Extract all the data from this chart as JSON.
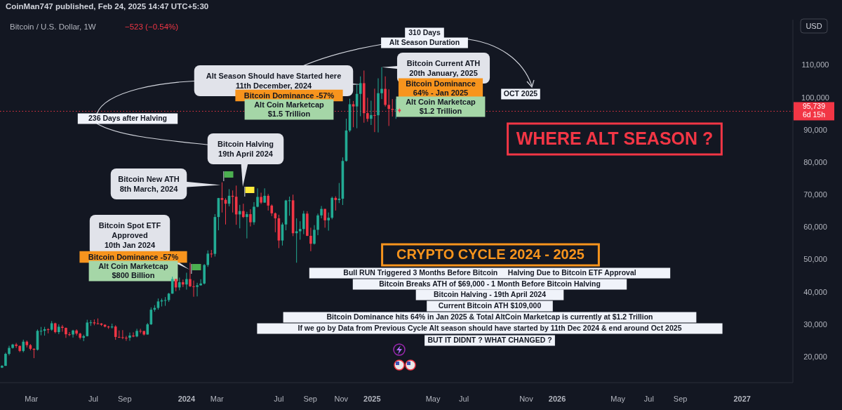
{
  "chart_data": {
    "type": "candlestick",
    "title": "Bitcoin / U.S. Dollar, 1W",
    "subtitle": "−523 (−0.54%)",
    "x": [
      "2023-01-02",
      "2023-01-09",
      "2023-01-16",
      "2023-01-23",
      "2023-01-30",
      "2023-02-06",
      "2023-02-13",
      "2023-02-20",
      "2023-02-27",
      "2023-03-06",
      "2023-03-13",
      "2023-03-20",
      "2023-03-27",
      "2023-04-03",
      "2023-04-10",
      "2023-04-17",
      "2023-04-24",
      "2023-05-01",
      "2023-05-08",
      "2023-05-15",
      "2023-05-22",
      "2023-05-29",
      "2023-06-05",
      "2023-06-12",
      "2023-06-19",
      "2023-06-26",
      "2023-07-03",
      "2023-07-10",
      "2023-07-17",
      "2023-07-24",
      "2023-07-31",
      "2023-08-07",
      "2023-08-14",
      "2023-08-21",
      "2023-08-28",
      "2023-09-04",
      "2023-09-11",
      "2023-09-18",
      "2023-09-25",
      "2023-10-02",
      "2023-10-09",
      "2023-10-16",
      "2023-10-23",
      "2023-10-30",
      "2023-11-06",
      "2023-11-13",
      "2023-11-20",
      "2023-11-27",
      "2023-12-04",
      "2023-12-11",
      "2023-12-18",
      "2023-12-25",
      "2024-01-01",
      "2024-01-08",
      "2024-01-15",
      "2024-01-22",
      "2024-01-29",
      "2024-02-05",
      "2024-02-12",
      "2024-02-19",
      "2024-02-26",
      "2024-03-04",
      "2024-03-11",
      "2024-03-18",
      "2024-03-25",
      "2024-04-01",
      "2024-04-08",
      "2024-04-15",
      "2024-04-22",
      "2024-04-29",
      "2024-05-06",
      "2024-05-13",
      "2024-05-20",
      "2024-05-27",
      "2024-06-03",
      "2024-06-10",
      "2024-06-17",
      "2024-06-24",
      "2024-07-01",
      "2024-07-08",
      "2024-07-15",
      "2024-07-22",
      "2024-07-29",
      "2024-08-05",
      "2024-08-12",
      "2024-08-19",
      "2024-08-26",
      "2024-09-02",
      "2024-09-09",
      "2024-09-16",
      "2024-09-23",
      "2024-09-30",
      "2024-10-07",
      "2024-10-14",
      "2024-10-21",
      "2024-10-28",
      "2024-11-04",
      "2024-11-11",
      "2024-11-18",
      "2024-11-25",
      "2024-12-02",
      "2024-12-09",
      "2024-12-16",
      "2024-12-23",
      "2024-12-30",
      "2025-01-06",
      "2025-01-13",
      "2025-01-20",
      "2025-01-27",
      "2025-02-03",
      "2025-02-10",
      "2025-02-17",
      "2025-02-24"
    ],
    "ohlc": [
      [
        16620,
        17400,
        16500,
        17180
      ],
      [
        17180,
        21250,
        17150,
        20870
      ],
      [
        20870,
        23370,
        20400,
        22710
      ],
      [
        22710,
        23960,
        22500,
        23750
      ],
      [
        23750,
        24250,
        22700,
        23330
      ],
      [
        23330,
        23450,
        21400,
        21780
      ],
      [
        21780,
        25250,
        21350,
        24630
      ],
      [
        24630,
        25000,
        22850,
        23560
      ],
      [
        23560,
        23900,
        21950,
        22430
      ],
      [
        22430,
        22600,
        19550,
        22140
      ],
      [
        22140,
        28400,
        21900,
        27980
      ],
      [
        27980,
        29180,
        26600,
        27990
      ],
      [
        27990,
        29200,
        26500,
        28470
      ],
      [
        28470,
        28800,
        27200,
        28330
      ],
      [
        28330,
        31000,
        28000,
        30310
      ],
      [
        30310,
        30490,
        27200,
        27590
      ],
      [
        27590,
        30000,
        26950,
        29240
      ],
      [
        29240,
        29800,
        27700,
        28890
      ],
      [
        28890,
        29000,
        25800,
        26920
      ],
      [
        26920,
        27600,
        26350,
        26850
      ],
      [
        26850,
        28300,
        25900,
        28080
      ],
      [
        28080,
        28450,
        26550,
        27120
      ],
      [
        27120,
        27400,
        25350,
        25850
      ],
      [
        25850,
        26800,
        24800,
        26340
      ],
      [
        26340,
        31400,
        26250,
        30540
      ],
      [
        30540,
        31300,
        29500,
        30590
      ],
      [
        30590,
        31500,
        29700,
        30290
      ],
      [
        30290,
        31800,
        29950,
        30240
      ],
      [
        30240,
        30350,
        29500,
        29850
      ],
      [
        29850,
        30000,
        29050,
        29290
      ],
      [
        29290,
        29550,
        28600,
        29050
      ],
      [
        29050,
        30200,
        28700,
        29300
      ],
      [
        29300,
        29700,
        25200,
        26100
      ],
      [
        26100,
        28100,
        25800,
        26010
      ],
      [
        26010,
        28200,
        25400,
        25850
      ],
      [
        25850,
        26400,
        24900,
        25840
      ],
      [
        25840,
        27450,
        24900,
        26530
      ],
      [
        26530,
        27500,
        26000,
        26250
      ],
      [
        26250,
        28600,
        26000,
        27970
      ],
      [
        27970,
        28600,
        27200,
        27920
      ],
      [
        27920,
        28000,
        26550,
        26850
      ],
      [
        26850,
        30400,
        26800,
        29990
      ],
      [
        29990,
        35200,
        29800,
        34500
      ],
      [
        34500,
        35900,
        33900,
        35050
      ],
      [
        35050,
        37950,
        34500,
        37050
      ],
      [
        37050,
        37950,
        35500,
        37390
      ],
      [
        37390,
        38400,
        35700,
        37470
      ],
      [
        37470,
        39700,
        36900,
        39460
      ],
      [
        39460,
        44700,
        39400,
        43990
      ],
      [
        43990,
        44000,
        40200,
        41370
      ],
      [
        41370,
        44400,
        40500,
        42990
      ],
      [
        42990,
        43800,
        41500,
        42280
      ],
      [
        42280,
        45900,
        40700,
        43950
      ],
      [
        43950,
        49000,
        41500,
        41730
      ],
      [
        41730,
        43500,
        38500,
        41550
      ],
      [
        41550,
        42800,
        38600,
        42030
      ],
      [
        42030,
        43900,
        41900,
        42580
      ],
      [
        42580,
        48600,
        42300,
        48300
      ],
      [
        48300,
        52800,
        47700,
        51800
      ],
      [
        51800,
        52950,
        50600,
        51730
      ],
      [
        51730,
        64000,
        50900,
        63100
      ],
      [
        63100,
        69000,
        59000,
        68950
      ],
      [
        68950,
        73800,
        64500,
        68390
      ],
      [
        68390,
        68900,
        60800,
        67210
      ],
      [
        67210,
        71700,
        66400,
        69650
      ],
      [
        69650,
        71300,
        64500,
        69360
      ],
      [
        69360,
        72800,
        60700,
        63900
      ],
      [
        63900,
        66850,
        59600,
        64940
      ],
      [
        64940,
        67200,
        62800,
        63100
      ],
      [
        63100,
        64700,
        56500,
        63980
      ],
      [
        63980,
        65500,
        60200,
        61480
      ],
      [
        61480,
        67700,
        60700,
        66270
      ],
      [
        66270,
        71950,
        66100,
        69300
      ],
      [
        69300,
        70600,
        67100,
        67550
      ],
      [
        67550,
        71950,
        67500,
        69650
      ],
      [
        69650,
        70200,
        65100,
        66630
      ],
      [
        66630,
        66980,
        63400,
        64250
      ],
      [
        64250,
        64500,
        58400,
        62700
      ],
      [
        62700,
        63800,
        53500,
        55850
      ],
      [
        55850,
        61400,
        54300,
        60800
      ],
      [
        60800,
        68400,
        59000,
        68200
      ],
      [
        68200,
        69400,
        63500,
        68250
      ],
      [
        68250,
        70000,
        57200,
        58100
      ],
      [
        58100,
        62700,
        49000,
        58700
      ],
      [
        58700,
        61800,
        56100,
        59400
      ],
      [
        59400,
        65000,
        57800,
        64150
      ],
      [
        64150,
        64900,
        57200,
        57300
      ],
      [
        57300,
        59800,
        52550,
        54850
      ],
      [
        54850,
        60600,
        54600,
        59150
      ],
      [
        59150,
        64150,
        57500,
        63600
      ],
      [
        63600,
        66500,
        62700,
        65600
      ],
      [
        65600,
        65600,
        59800,
        62080
      ],
      [
        62080,
        64500,
        58900,
        62870
      ],
      [
        62870,
        69400,
        62400,
        69000
      ],
      [
        69000,
        69500,
        65100,
        68350
      ],
      [
        68350,
        73600,
        67400,
        68750
      ],
      [
        68750,
        81500,
        66800,
        80400
      ],
      [
        80400,
        93450,
        80200,
        89800
      ],
      [
        89800,
        99600,
        89300,
        97900
      ],
      [
        97900,
        98900,
        90800,
        97220
      ],
      [
        97220,
        104000,
        90500,
        101100
      ],
      [
        101100,
        106500,
        94200,
        104400
      ],
      [
        104400,
        108300,
        92200,
        95150
      ],
      [
        95150,
        99900,
        92500,
        93400
      ],
      [
        93400,
        99000,
        91500,
        94560
      ],
      [
        94560,
        102700,
        89300,
        94500
      ],
      [
        94500,
        105900,
        89200,
        101300
      ],
      [
        101300,
        109350,
        99500,
        102650
      ],
      [
        102650,
        106500,
        97200,
        97700
      ],
      [
        97700,
        102500,
        91200,
        96470
      ],
      [
        96470,
        99500,
        94100,
        96150
      ],
      [
        96150,
        99500,
        93400,
        96260
      ],
      [
        96260,
        96600,
        95300,
        95739
      ]
    ],
    "xlim": [
      "2022-12-29",
      "2027-04-11"
    ],
    "xticks": [
      {
        "value": "2023-03-01",
        "label": "Mar"
      },
      {
        "value": "2023-07-01",
        "label": "Jul"
      },
      {
        "value": "2023-09-01",
        "label": "Sep"
      },
      {
        "value": "2024-01-01",
        "label": "2024"
      },
      {
        "value": "2024-03-01",
        "label": "Mar"
      },
      {
        "value": "2024-07-01",
        "label": "Jul"
      },
      {
        "value": "2024-09-01",
        "label": "Sep"
      },
      {
        "value": "2024-11-01",
        "label": "Nov"
      },
      {
        "value": "2025-01-01",
        "label": "2025"
      },
      {
        "value": "2025-05-01",
        "label": "May"
      },
      {
        "value": "2025-07-01",
        "label": "Jul"
      },
      {
        "value": "2025-11-01",
        "label": "Nov"
      },
      {
        "value": "2026-01-01",
        "label": "2026"
      },
      {
        "value": "2026-05-01",
        "label": "May"
      },
      {
        "value": "2026-07-01",
        "label": "Jul"
      },
      {
        "value": "2026-09-01",
        "label": "Sep"
      },
      {
        "value": "2027-01-01",
        "label": "2027"
      }
    ],
    "ylim": [
      12000,
      124000
    ],
    "yticks": [
      {
        "value": 20000,
        "label": "20,000"
      },
      {
        "value": 30000,
        "label": "30,000"
      },
      {
        "value": 40000,
        "label": "40,000"
      },
      {
        "value": 50000,
        "label": "50,000"
      },
      {
        "value": 60000,
        "label": "60,000"
      },
      {
        "value": 70000,
        "label": "70,000"
      },
      {
        "value": 80000,
        "label": "80,000"
      },
      {
        "value": 90000,
        "label": "90,000"
      },
      {
        "value": 100000,
        "label": "100,000"
      },
      {
        "value": 110000,
        "label": "110,000"
      }
    ],
    "ref_lines": [
      {
        "axis": "y",
        "value": 95739,
        "label": "95,739\n6d 15h",
        "color": "#f23645",
        "line_style": "dotted"
      }
    ],
    "annotations": [
      "CoinMan747 published, Feb 24, 2025 14:47 UTC+5:30",
      "USD",
      "Bitcoin Spot ETF\nApproved\n10th Jan 2024",
      "Bitcoin Dominance -57%",
      "Alt Coin Marketcap\n$800 Billion",
      {
        "text": "Bitcoin New ATH\n8th March, 2024",
        "x": "2024-03-08",
        "y": 73000
      },
      "Bitcoin Halving\n19th April 2024",
      "236 Days after Halving",
      {
        "text": "Alt Season Should have Started here\n11th December, 2024",
        "x": "2024-12-11",
        "y": 104000
      },
      "Bitcoin Dominance -57%",
      "Alt Coin Marketcap\n$1.5 Trillion",
      "310 Days",
      "Alt Season Duration",
      {
        "text": "Bitcoin Current ATH\n20th January, 2025",
        "x": "2025-01-20",
        "y": 109350
      },
      "Bitcoin Dominance\n64% - Jan 2025",
      "Alt Coin Marketcap\n$1.2 Trillion",
      "OCT 2025",
      "WHERE ALT SEASON ?",
      "CRYPTO CYCLE 2024 - 2025",
      "Bull RUN Triggered 3 Months Before Bitcoin     Halving Due to Bitcoin ETF Approval",
      "Bitcoin Breaks ATH of $69,000 - 1 Month Before Bitcoin Halving",
      "Bitcoin Halving - 19th April 2024",
      "Current Bitcoin ATH $109,000",
      "Bitcoin Dominance hits 64% in Jan 2025 & Total AltCoin Marketcap is currently at $1.2 Trillion",
      "If we go by Data from Previous Cycle Alt season should have started by 11th Dec 2024 & end around Oct 2025",
      "BUT IT DIDNT ? WHAT CHANGED ?"
    ]
  }
}
